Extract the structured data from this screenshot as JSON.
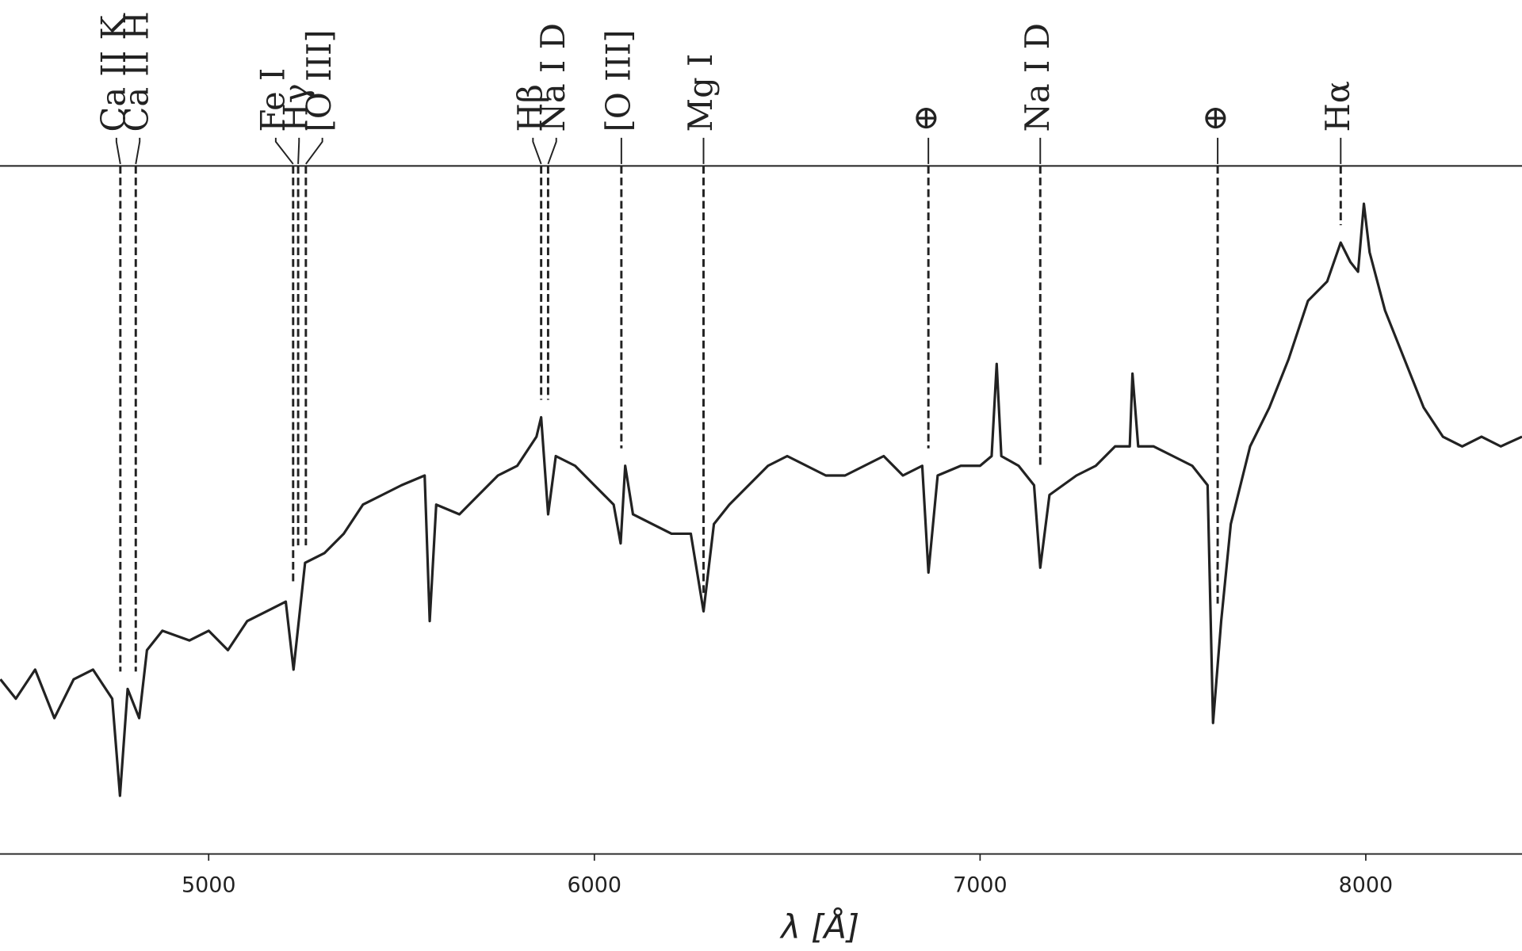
{
  "chart_data": {
    "type": "line",
    "xlabel": "λ [Å]",
    "xlim": [
      4459,
      8405
    ],
    "ylim": [
      0,
      709
    ],
    "xticks": [
      5000,
      6000,
      7000,
      8000
    ],
    "color": "#222222",
    "x": [
      4460,
      4500,
      4550,
      4600,
      4650,
      4700,
      4750,
      4770,
      4790,
      4820,
      4840,
      4880,
      4950,
      5000,
      5050,
      5100,
      5150,
      5200,
      5220,
      5250,
      5300,
      5350,
      5400,
      5450,
      5500,
      5560,
      5573,
      5590,
      5650,
      5700,
      5750,
      5800,
      5850,
      5862,
      5880,
      5900,
      5950,
      6000,
      6050,
      6068,
      6080,
      6100,
      6150,
      6200,
      6250,
      6283,
      6310,
      6350,
      6400,
      6450,
      6500,
      6550,
      6600,
      6650,
      6700,
      6750,
      6800,
      6850,
      6866,
      6890,
      6950,
      7000,
      7030,
      7043,
      7055,
      7100,
      7140,
      7156,
      7180,
      7250,
      7300,
      7350,
      7388,
      7395,
      7410,
      7450,
      7500,
      7550,
      7590,
      7604,
      7625,
      7650,
      7700,
      7750,
      7800,
      7850,
      7900,
      7935,
      7960,
      7980,
      7995,
      8010,
      8050,
      8100,
      8150,
      8200,
      8250,
      8300,
      8350,
      8405
    ],
    "values": [
      180,
      160,
      190,
      140,
      180,
      190,
      160,
      60,
      170,
      140,
      210,
      230,
      220,
      230,
      210,
      240,
      250,
      260,
      190,
      300,
      310,
      330,
      360,
      370,
      380,
      390,
      240,
      360,
      350,
      370,
      390,
      400,
      430,
      450,
      350,
      410,
      400,
      380,
      360,
      320,
      400,
      350,
      340,
      330,
      330,
      250,
      340,
      360,
      380,
      400,
      410,
      400,
      390,
      390,
      400,
      410,
      390,
      400,
      290,
      390,
      400,
      400,
      410,
      505,
      410,
      400,
      380,
      295,
      370,
      390,
      400,
      420,
      420,
      495,
      420,
      420,
      410,
      400,
      380,
      135,
      240,
      340,
      420,
      460,
      510,
      570,
      590,
      630,
      610,
      600,
      670,
      620,
      560,
      510,
      460,
      430,
      420,
      430,
      420,
      430
    ],
    "lines": [
      {
        "label": "Ca II K",
        "x": 4771
      },
      {
        "label": "Ca II H",
        "x": 4811
      },
      {
        "label": "Fe I",
        "x": 5219
      },
      {
        "label": "Hγ",
        "x": 5232
      },
      {
        "label": "[O III]",
        "x": 5252
      },
      {
        "label": "Hβ",
        "x": 5862
      },
      {
        "label": "Na I D",
        "x": 5880
      },
      {
        "label": "[O III]",
        "x": 6070
      },
      {
        "label": "Mg I",
        "x": 6283
      },
      {
        "label": "⊕",
        "x": 6866
      },
      {
        "label": "Na I D",
        "x": 7156
      },
      {
        "label": "⊕",
        "x": 7616
      },
      {
        "label": "Hα",
        "x": 7935
      }
    ]
  }
}
